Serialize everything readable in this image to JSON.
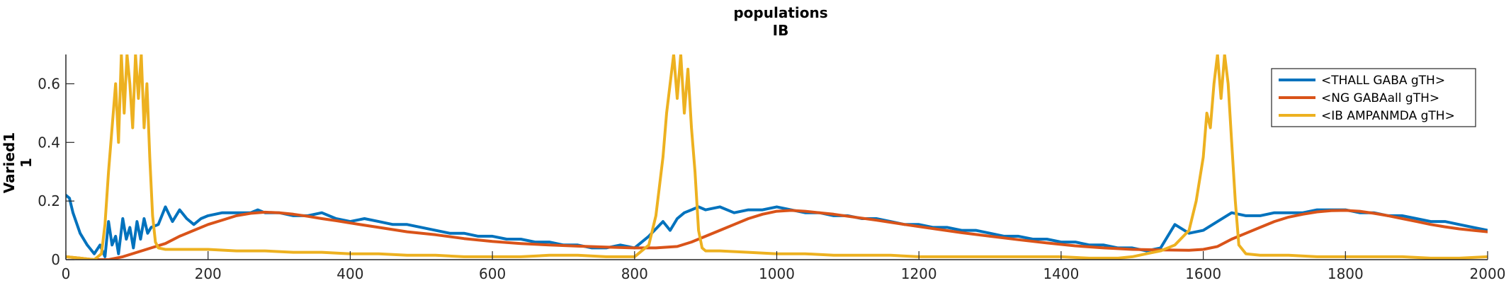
{
  "chart_data": {
    "type": "line",
    "title": "populations",
    "subtitle": "IB",
    "ylabel": "Varied1",
    "ylabel2": "1",
    "xlabel": "",
    "xlim": [
      0,
      2000
    ],
    "ylim": [
      0,
      0.7
    ],
    "xticks": [
      0,
      200,
      400,
      600,
      800,
      1000,
      1200,
      1400,
      1600,
      1800,
      2000
    ],
    "xtick_labels": [
      "0",
      "200",
      "400",
      "600",
      "800",
      "1000",
      "1200",
      "1400",
      "1600",
      "1800",
      "2000"
    ],
    "yticks": [
      0,
      0.2,
      0.4,
      0.6
    ],
    "ytick_labels": [
      "0",
      "0.2",
      "0.4",
      "0.6"
    ],
    "grid": false,
    "legend_position": "top-right",
    "series": [
      {
        "name": "<THALL GABA gTH>",
        "color": "#0072BD",
        "x": [
          0,
          5,
          10,
          20,
          30,
          40,
          48,
          55,
          60,
          65,
          70,
          74,
          80,
          85,
          90,
          95,
          100,
          105,
          110,
          115,
          120,
          130,
          140,
          150,
          160,
          170,
          180,
          190,
          200,
          220,
          240,
          260,
          270,
          280,
          300,
          320,
          340,
          360,
          380,
          400,
          420,
          440,
          460,
          480,
          500,
          520,
          540,
          560,
          580,
          600,
          620,
          640,
          660,
          680,
          700,
          720,
          740,
          760,
          780,
          800,
          820,
          840,
          850,
          860,
          870,
          880,
          890,
          900,
          920,
          940,
          960,
          980,
          1000,
          1020,
          1040,
          1060,
          1080,
          1100,
          1120,
          1140,
          1160,
          1180,
          1200,
          1220,
          1240,
          1260,
          1280,
          1300,
          1320,
          1340,
          1360,
          1380,
          1400,
          1420,
          1440,
          1460,
          1480,
          1500,
          1520,
          1540,
          1560,
          1580,
          1600,
          1620,
          1640,
          1660,
          1680,
          1700,
          1720,
          1740,
          1760,
          1780,
          1800,
          1820,
          1840,
          1860,
          1880,
          1900,
          1920,
          1940,
          1960,
          1980,
          2000
        ],
        "y": [
          0.22,
          0.21,
          0.16,
          0.09,
          0.05,
          0.02,
          0.05,
          0.01,
          0.13,
          0.05,
          0.08,
          0.02,
          0.14,
          0.07,
          0.11,
          0.04,
          0.13,
          0.07,
          0.14,
          0.09,
          0.11,
          0.12,
          0.18,
          0.13,
          0.17,
          0.14,
          0.12,
          0.14,
          0.15,
          0.16,
          0.16,
          0.16,
          0.17,
          0.16,
          0.16,
          0.15,
          0.15,
          0.16,
          0.14,
          0.13,
          0.14,
          0.13,
          0.12,
          0.12,
          0.11,
          0.1,
          0.09,
          0.09,
          0.08,
          0.08,
          0.07,
          0.07,
          0.06,
          0.06,
          0.05,
          0.05,
          0.04,
          0.04,
          0.05,
          0.04,
          0.08,
          0.13,
          0.1,
          0.14,
          0.16,
          0.17,
          0.18,
          0.17,
          0.18,
          0.16,
          0.17,
          0.17,
          0.18,
          0.17,
          0.16,
          0.16,
          0.15,
          0.15,
          0.14,
          0.14,
          0.13,
          0.12,
          0.12,
          0.11,
          0.11,
          0.1,
          0.1,
          0.09,
          0.08,
          0.08,
          0.07,
          0.07,
          0.06,
          0.06,
          0.05,
          0.05,
          0.04,
          0.04,
          0.03,
          0.04,
          0.12,
          0.09,
          0.1,
          0.13,
          0.16,
          0.15,
          0.15,
          0.16,
          0.16,
          0.16,
          0.17,
          0.17,
          0.17,
          0.16,
          0.16,
          0.15,
          0.15,
          0.14,
          0.13,
          0.13,
          0.12,
          0.11,
          0.1
        ]
      },
      {
        "name": "<NG GABAall gTH>",
        "color": "#D95319",
        "x": [
          0,
          20,
          40,
          60,
          80,
          100,
          120,
          140,
          160,
          180,
          200,
          220,
          240,
          260,
          280,
          300,
          320,
          340,
          360,
          380,
          400,
          440,
          480,
          520,
          560,
          600,
          640,
          680,
          720,
          760,
          800,
          830,
          860,
          880,
          900,
          920,
          940,
          960,
          980,
          1000,
          1020,
          1040,
          1060,
          1080,
          1100,
          1140,
          1180,
          1220,
          1260,
          1300,
          1340,
          1380,
          1420,
          1460,
          1500,
          1540,
          1580,
          1600,
          1620,
          1640,
          1660,
          1680,
          1700,
          1720,
          1740,
          1760,
          1780,
          1800,
          1820,
          1840,
          1860,
          1880,
          1900,
          1920,
          1940,
          1960,
          1980,
          2000
        ],
        "y": [
          0.01,
          0.005,
          0.0,
          0.0,
          0.01,
          0.025,
          0.04,
          0.055,
          0.08,
          0.1,
          0.12,
          0.135,
          0.15,
          0.158,
          0.162,
          0.16,
          0.155,
          0.148,
          0.14,
          0.133,
          0.125,
          0.11,
          0.095,
          0.085,
          0.072,
          0.062,
          0.055,
          0.05,
          0.046,
          0.043,
          0.04,
          0.04,
          0.045,
          0.06,
          0.08,
          0.1,
          0.12,
          0.14,
          0.155,
          0.165,
          0.168,
          0.165,
          0.16,
          0.155,
          0.148,
          0.135,
          0.12,
          0.106,
          0.092,
          0.08,
          0.068,
          0.057,
          0.047,
          0.04,
          0.035,
          0.033,
          0.032,
          0.035,
          0.045,
          0.07,
          0.09,
          0.11,
          0.13,
          0.145,
          0.155,
          0.163,
          0.167,
          0.168,
          0.165,
          0.158,
          0.15,
          0.14,
          0.13,
          0.12,
          0.112,
          0.105,
          0.1,
          0.095
        ]
      },
      {
        "name": "<IB AMPANMDA gTH>",
        "color": "#EDB120",
        "x": [
          0,
          20,
          40,
          50,
          55,
          60,
          65,
          70,
          74,
          78,
          82,
          86,
          90,
          94,
          98,
          102,
          106,
          110,
          114,
          118,
          122,
          126,
          130,
          140,
          160,
          200,
          240,
          280,
          320,
          360,
          400,
          440,
          480,
          520,
          560,
          600,
          640,
          680,
          720,
          760,
          800,
          820,
          830,
          840,
          845,
          850,
          855,
          860,
          865,
          870,
          875,
          880,
          885,
          890,
          895,
          900,
          920,
          960,
          1000,
          1040,
          1080,
          1120,
          1160,
          1200,
          1240,
          1280,
          1320,
          1360,
          1400,
          1440,
          1480,
          1500,
          1520,
          1540,
          1560,
          1580,
          1590,
          1600,
          1605,
          1610,
          1615,
          1620,
          1625,
          1630,
          1635,
          1640,
          1645,
          1650,
          1660,
          1680,
          1720,
          1760,
          1800,
          1840,
          1880,
          1920,
          1960,
          2000
        ],
        "y": [
          0.01,
          0.005,
          0.0,
          0.02,
          0.12,
          0.3,
          0.45,
          0.6,
          0.4,
          0.7,
          0.5,
          0.7,
          0.6,
          0.45,
          0.7,
          0.55,
          0.7,
          0.45,
          0.6,
          0.35,
          0.15,
          0.06,
          0.04,
          0.035,
          0.035,
          0.035,
          0.03,
          0.03,
          0.025,
          0.025,
          0.02,
          0.02,
          0.015,
          0.015,
          0.01,
          0.01,
          0.01,
          0.015,
          0.015,
          0.01,
          0.01,
          0.05,
          0.15,
          0.35,
          0.5,
          0.6,
          0.7,
          0.55,
          0.7,
          0.5,
          0.65,
          0.45,
          0.3,
          0.1,
          0.04,
          0.03,
          0.03,
          0.025,
          0.02,
          0.02,
          0.015,
          0.015,
          0.015,
          0.01,
          0.01,
          0.01,
          0.01,
          0.01,
          0.01,
          0.005,
          0.005,
          0.01,
          0.02,
          0.03,
          0.05,
          0.1,
          0.2,
          0.35,
          0.5,
          0.45,
          0.6,
          0.7,
          0.55,
          0.7,
          0.6,
          0.4,
          0.2,
          0.05,
          0.02,
          0.015,
          0.015,
          0.01,
          0.01,
          0.01,
          0.01,
          0.005,
          0.005,
          0.01
        ]
      }
    ]
  }
}
